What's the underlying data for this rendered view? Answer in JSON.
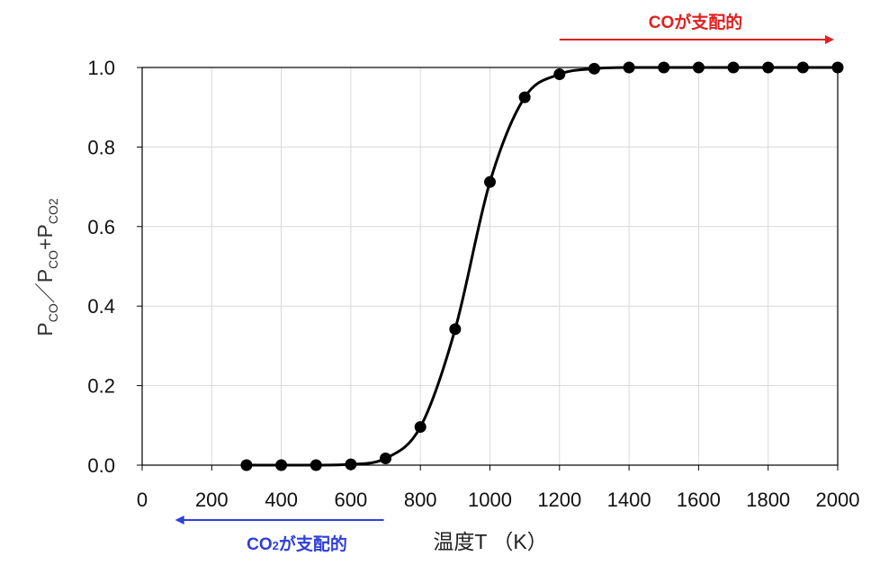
{
  "chart_data": {
    "type": "scatter",
    "xlabel": "温度T （K）",
    "ylabel": {
      "main": "P",
      "co_sub": "CO",
      "slash": "／",
      "plus": "+",
      "co2_sub": "CO2"
    },
    "xlim": [
      0,
      2000
    ],
    "ylim": [
      0.0,
      1.0
    ],
    "x_ticks": [
      0,
      200,
      400,
      600,
      800,
      1000,
      1200,
      1400,
      1600,
      1800,
      2000
    ],
    "x_tick_labels": [
      "0",
      "200",
      "400",
      "600",
      "800",
      "1000",
      "1200",
      "1400",
      "1600",
      "1800",
      "2000"
    ],
    "y_ticks": [
      0.0,
      0.2,
      0.4,
      0.6,
      0.8,
      1.0
    ],
    "y_tick_labels": [
      "0.0",
      "0.2",
      "0.4",
      "0.6",
      "0.8",
      "1.0"
    ],
    "grid": true,
    "marker_color": "#000000",
    "curve_color": "#000000",
    "series": [
      {
        "x": [
          300,
          400,
          500,
          600,
          700,
          800,
          900,
          1000,
          1100,
          1200,
          1300,
          1400,
          1500,
          1600,
          1700,
          1800,
          1900,
          2000
        ],
        "y": [
          0.0,
          0.0,
          0.0,
          0.002,
          0.017,
          0.096,
          0.342,
          0.712,
          0.925,
          0.983,
          0.997,
          1.0,
          1.0,
          1.0,
          1.0,
          1.0,
          1.0,
          1.0
        ]
      }
    ],
    "annotations": [
      {
        "id": "co_dominant",
        "label": "COが支配的",
        "color": "#e02020",
        "x_from": 1200,
        "x_to": 2000,
        "direction": "right",
        "position": "top"
      },
      {
        "id": "co2_dominant",
        "label_main": "CO",
        "label_sub": "2",
        "label_rest": "が支配的",
        "color": "#2f3fd8",
        "x_from": 100,
        "x_to": 700,
        "direction": "left",
        "position": "bottom"
      }
    ]
  }
}
